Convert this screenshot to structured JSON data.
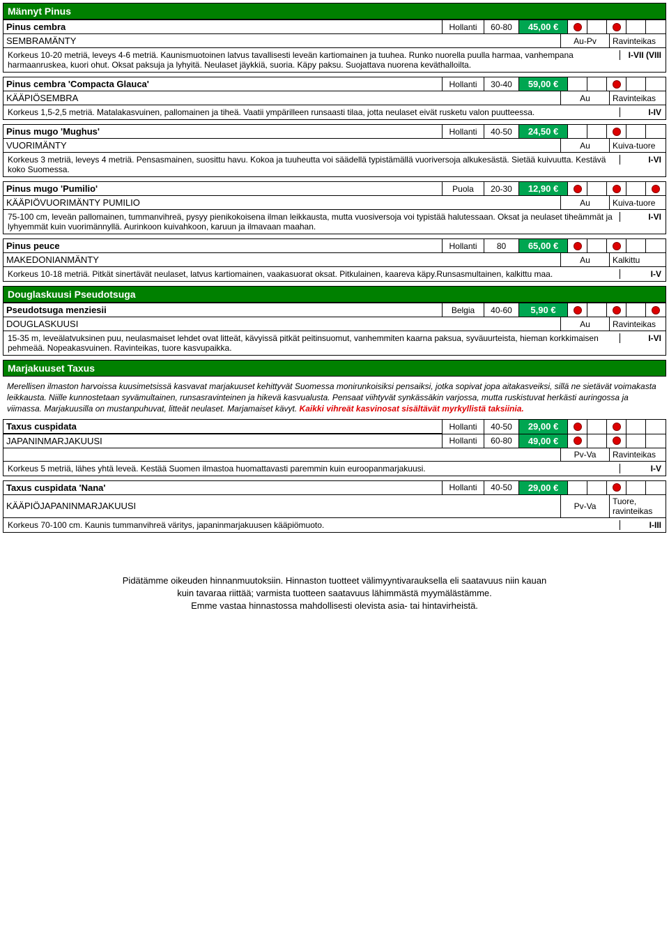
{
  "sections": [
    {
      "title": "Männyt Pinus"
    },
    {
      "title": "Douglaskuusi Pseudotsuga"
    },
    {
      "title": "Marjakuuset Taxus"
    }
  ],
  "plants": [
    {
      "latin": "Pinus cembra",
      "origin": "Hollanti",
      "size": "60-80",
      "price": "45,00 €",
      "dots": [
        true,
        false,
        true,
        false,
        false
      ],
      "fin": "SEMBRAMÄNTY",
      "light": "Au-Pv",
      "soil": "Ravinteikas",
      "desc": "Korkeus 10-20 metriä, leveys 4-6 metriä. Kaunismuotoinen latvus tavallisesti leveän kartiomainen ja tuuhea. Runko nuorella puulla harmaa, vanhempana harmaanruskea, kuori ohut. Oksat paksuja ja lyhyitä. Neulaset jäykkiä, suoria. Käpy paksu. Suojattava nuorena keväthalloilta.",
      "zone": "I-VII (VIII"
    },
    {
      "latin": "Pinus cembra 'Compacta Glauca'",
      "origin": "Hollanti",
      "size": "30-40",
      "price": "59,00 €",
      "dots": [
        false,
        false,
        true,
        false,
        false
      ],
      "fin": "KÄÄPIÖSEMBRA",
      "light": "Au",
      "soil": "Ravinteikas",
      "desc": "Korkeus 1,5-2,5 metriä. Matalakasvuinen, pallomainen ja tiheä. Vaatii ympärilleen runsaasti tilaa, jotta neulaset eivät rusketu valon puutteessa.",
      "zone": "I-IV"
    },
    {
      "latin": "Pinus mugo 'Mughus'",
      "origin": "Hollanti",
      "size": "40-50",
      "price": "24,50 €",
      "dots": [
        false,
        false,
        true,
        false,
        false
      ],
      "fin": "VUORIMÄNTY",
      "light": "Au",
      "soil": "Kuiva-tuore",
      "desc": "Korkeus 3 metriä, leveys 4 metriä. Pensasmainen, suosittu havu. Kokoa ja tuuheutta voi säädellä typistämällä vuoriversoja alkukesästä. Sietää kuivuutta. Kestävä koko Suomessa.",
      "zone": "I-VI"
    },
    {
      "latin": "Pinus mugo 'Pumilio'",
      "origin": "Puola",
      "size": "20-30",
      "price": "12,90 €",
      "dots": [
        true,
        false,
        true,
        false,
        true
      ],
      "fin": "KÄÄPIÖVUORIMÄNTY PUMILIO",
      "light": "Au",
      "soil": "Kuiva-tuore",
      "desc": "75-100 cm, leveän pallomainen, tummanvihreä, pysyy pienikokoisena ilman leikkausta, mutta vuosiversoja voi typistää halutessaan. Oksat ja neulaset tiheämmät ja lyhyemmät kuin vuorimännyllä. Aurinkoon kuivahkoon, karuun ja ilmavaan maahan.",
      "zone": "I-VI"
    },
    {
      "latin": "Pinus peuce",
      "origin": "Hollanti",
      "size": "80",
      "price": "65,00 €",
      "dots": [
        true,
        false,
        true,
        false,
        false
      ],
      "fin": "MAKEDONIANMÄNTY",
      "light": "Au",
      "soil": "Kalkittu",
      "desc": "Korkeus 10-18 metriä. Pitkät sinertävät neulaset, latvus kartiomainen, vaakasuorat oksat. Pitkulainen, kaareva käpy.Runsasmultainen, kalkittu maa.",
      "zone": "I-V"
    },
    {
      "latin": "Pseudotsuga menziesii",
      "origin": "Belgia",
      "size": "40-60",
      "price": "5,90 €",
      "dots": [
        true,
        false,
        true,
        false,
        true
      ],
      "fin": "DOUGLASKUUSI",
      "light": "Au",
      "soil": "Ravinteikas",
      "desc": "15-35 m, leveälatvuksinen puu, neulasmaiset lehdet ovat litteät, kävyissä pitkät peitinsuomut, vanhemmiten kaarna paksua, syväuurteista, hieman korkkimaisen pehmeää. Nopeakasvuinen. Ravinteikas, tuore kasvupaikka.",
      "zone": "I-VI"
    }
  ],
  "taxusIntro": {
    "text": "Merellisen ilmaston harvoissa kuusimetsissä kasvavat marjakuuset kehittyvät Suomessa monirunkoisiksi pensaiksi, jotka sopivat jopa aitakasveiksi, sillä ne sietävät voimakasta leikkausta. Niille kunnostetaan syvämultainen, runsasravinteinen ja hikevä kasvualusta. Pensaat viihtyvät synkässäkin varjossa, mutta ruskistuvat herkästi auringossa ja viimassa. Marjakuusilla on mustanpuhuvat, litteät neulaset. Marjamaiset kävyt.",
    "warning": "Kaikki vihreät kasvinosat sisältävät myrkyllistä taksiinia."
  },
  "taxus1": {
    "latin": "Taxus cuspidata",
    "rows": [
      {
        "origin": "Hollanti",
        "size": "40-50",
        "price": "29,00 €",
        "dots": [
          true,
          false,
          true,
          false,
          false
        ]
      },
      {
        "origin": "Hollanti",
        "size": "60-80",
        "price": "49,00 €",
        "dots": [
          true,
          false,
          true,
          false,
          false
        ]
      }
    ],
    "fin": "JAPANINMARJAKUUSI",
    "light": "Pv-Va",
    "soil": "Ravinteikas",
    "desc": "Korkeus 5 metriä, lähes yhtä leveä. Kestää Suomen ilmastoa huomattavasti paremmin kuin euroopanmarjakuusi.",
    "zone": "I-V"
  },
  "taxus2": {
    "latin": "Taxus cuspidata 'Nana'",
    "origin": "Hollanti",
    "size": "40-50",
    "price": "29,00 €",
    "dots": [
      false,
      false,
      true,
      false,
      false
    ],
    "fin": "KÄÄPIÖJAPANINMARJAKUUSI",
    "light": "Pv-Va",
    "soil": "Tuore, ravinteikas",
    "desc": "Korkeus 70-100 cm. Kaunis tummanvihreä väritys, japaninmarjakuusen kääpiömuoto.",
    "zone": "I-III"
  },
  "footer": {
    "l1": "Pidätämme oikeuden hinnanmuutoksiin. Hinnaston tuotteet välimyyntivarauksella eli saatavuus niin kauan",
    "l2": "kuin tavaraa riittää; varmista tuotteen saatavuus lähimmästä myymälästämme.",
    "l3": "Emme vastaa hinnastossa mahdollisesti olevista asia- tai hintavirheistä."
  }
}
